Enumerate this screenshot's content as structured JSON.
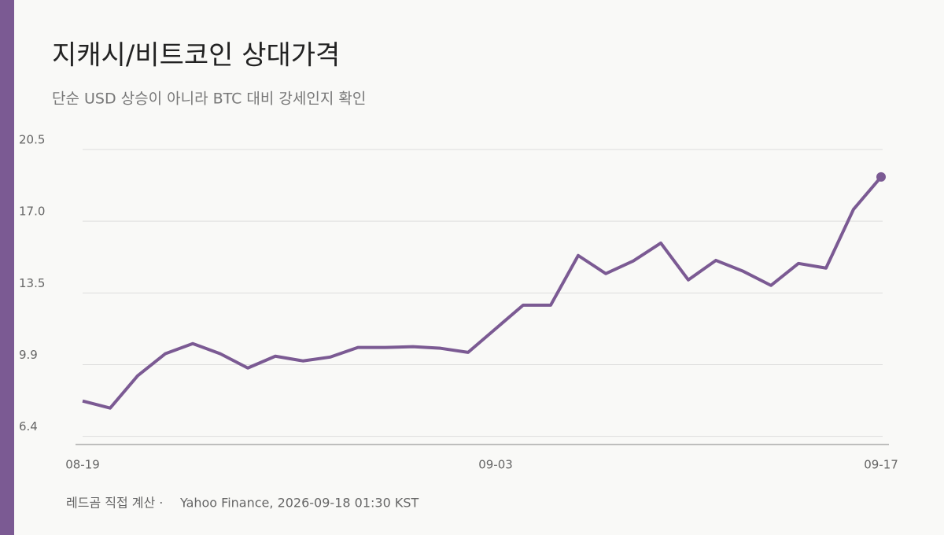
{
  "chart_data": {
    "type": "line",
    "title": "지캐시/비트코인 상대가격",
    "subtitle": "단순 USD 상승이 아니라 BTC 대비 강세인지 확인",
    "note": "레드곰 직접 계산 ·",
    "source": "Yahoo Finance, 2026-09-18 01:30 KST",
    "categories": [
      "08-19",
      null,
      null,
      null,
      null,
      null,
      null,
      null,
      null,
      null,
      null,
      null,
      null,
      null,
      null,
      "09-03",
      null,
      null,
      null,
      null,
      null,
      null,
      null,
      null,
      null,
      null,
      null,
      null,
      null,
      "09-17"
    ],
    "values": [
      8.14,
      7.79,
      9.38,
      10.46,
      10.96,
      10.46,
      9.76,
      10.34,
      10.11,
      10.3,
      10.77,
      10.77,
      10.81,
      10.73,
      10.53,
      11.69,
      12.85,
      12.85,
      15.29,
      14.4,
      15.02,
      15.9,
      14.09,
      15.05,
      14.51,
      13.82,
      14.9,
      14.67,
      17.56,
      19.15
    ],
    "color": "#7b5a93",
    "ylim": [
      6.0,
      20.5
    ],
    "yticks": [
      6.4,
      {
        "value": 9.925,
        "label": "9.9"
      },
      {
        "value": 13.45,
        "label": "13.5"
      },
      {
        "value": 16.975,
        "label": "17.0"
      },
      20.5
    ],
    "grid": true
  }
}
